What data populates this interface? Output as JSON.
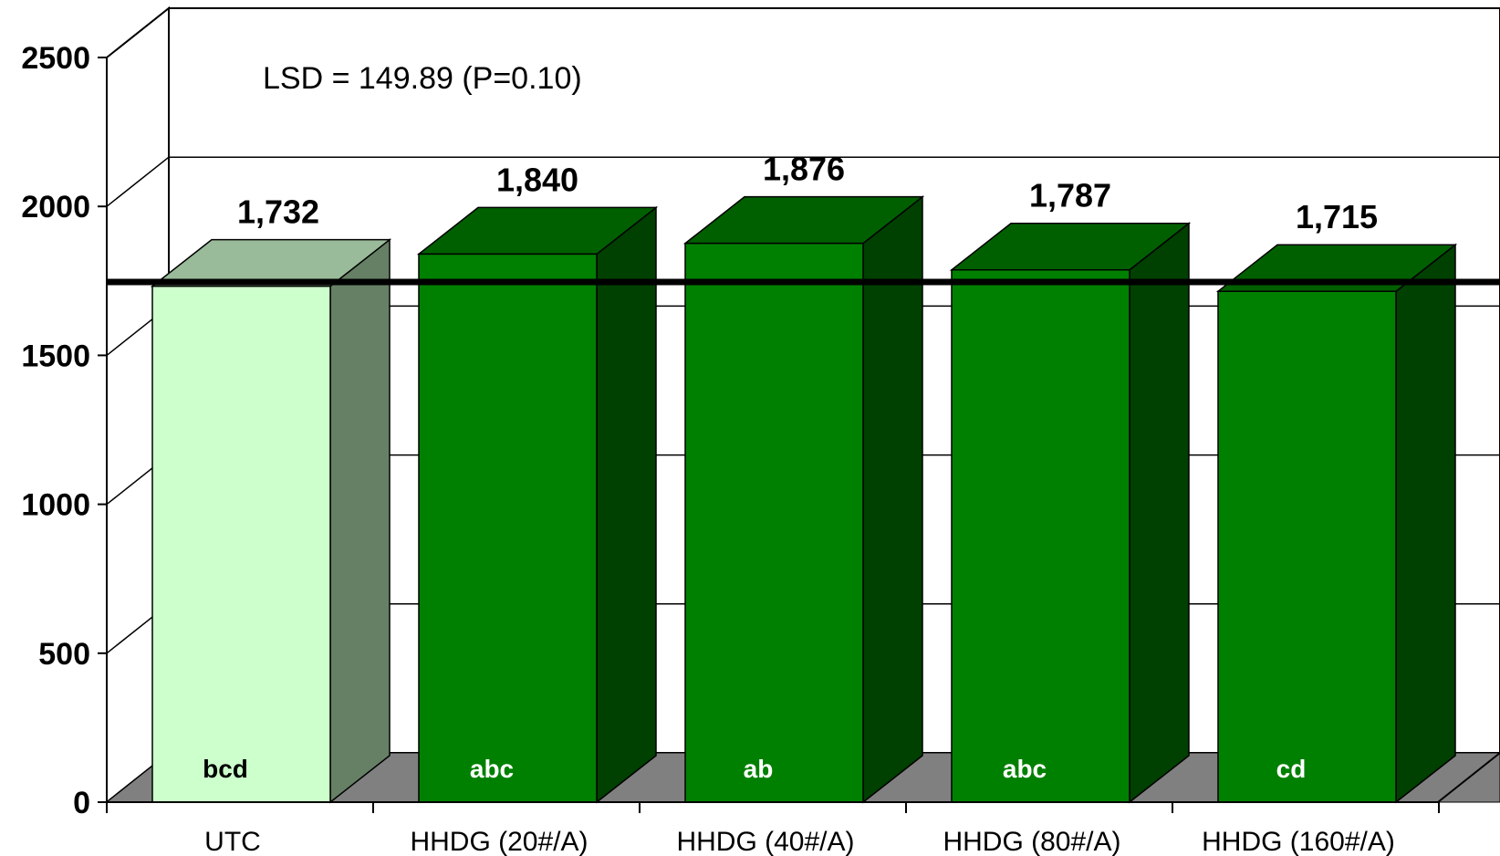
{
  "chart_data": {
    "type": "bar",
    "categories": [
      "UTC",
      "HHDG (20#/A)",
      "HHDG (40#/A)",
      "HHDG (80#/A)",
      "HHDG (160#/A)"
    ],
    "values": [
      1732,
      1840,
      1876,
      1787,
      1715
    ],
    "value_labels": [
      "1,732",
      "1,840",
      "1,876",
      "1,787",
      "1,715"
    ],
    "significance_letters": [
      "bcd",
      "abc",
      "ab",
      "abc",
      "cd"
    ],
    "y_ticks": [
      "0",
      "500",
      "1000",
      "1500",
      "2000",
      "2500"
    ],
    "ylim": [
      0,
      2500
    ],
    "reference_line": 1732,
    "annotation": "LSD = 149.89 (P=0.10)",
    "grid": true,
    "style": "3d-column",
    "colors": {
      "control_front": "#ccffcc",
      "control_side": "#668066",
      "control_top": "#99bb99",
      "treated_front": "#008000",
      "treated_side": "#004000",
      "treated_top": "#006000",
      "floor": "#808080",
      "reference_line": "#000000"
    }
  }
}
